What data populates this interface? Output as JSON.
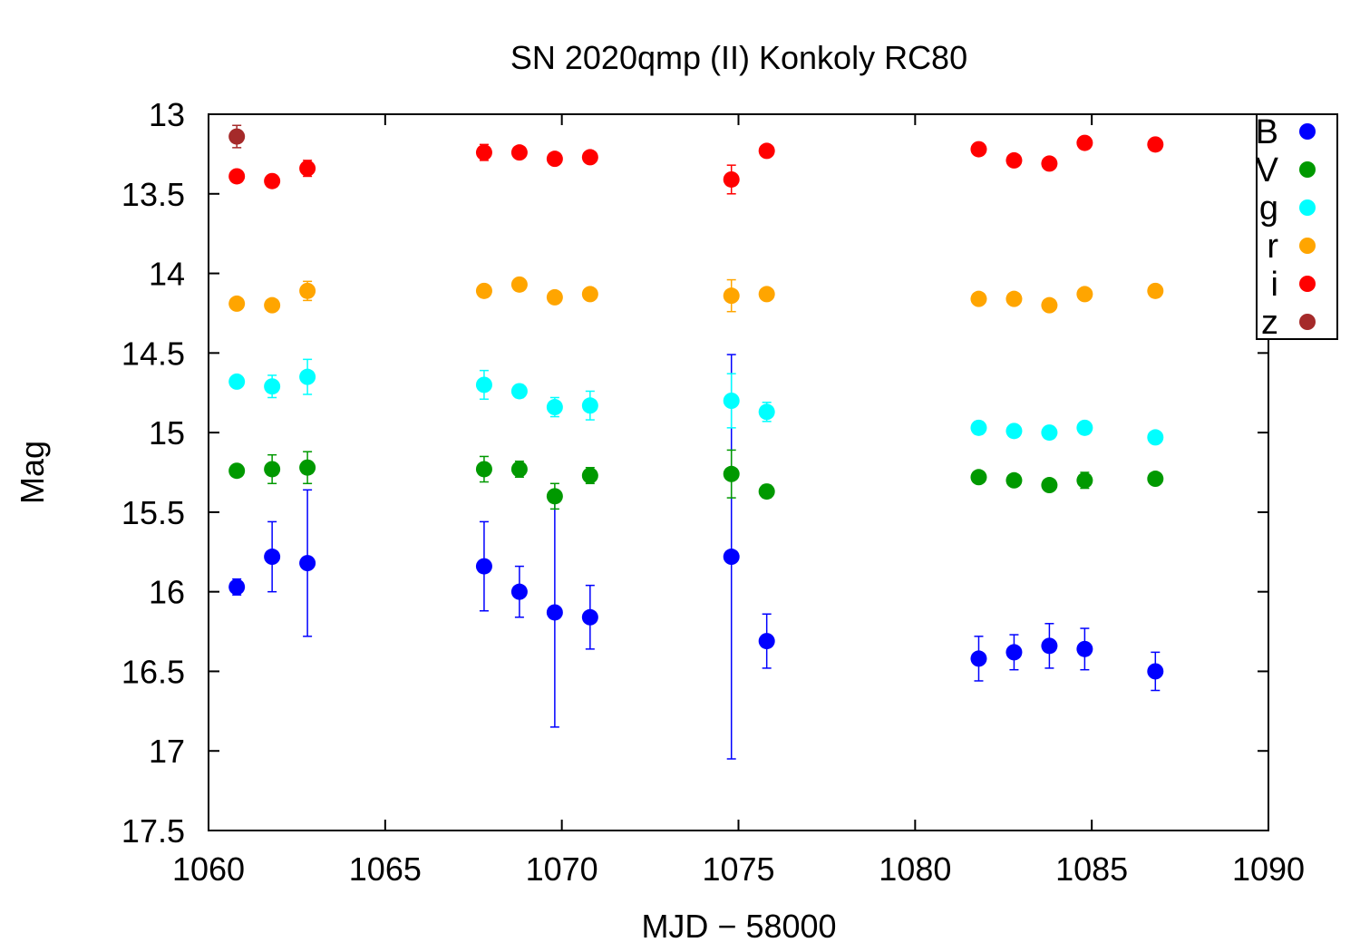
{
  "chart_data": {
    "type": "scatter",
    "title": "SN 2020qmp (II) Konkoly RC80",
    "xlabel": "MJD − 58000",
    "ylabel": "Mag",
    "xlim": [
      1060,
      1090
    ],
    "ylim": [
      13,
      17.5
    ],
    "y_inverted": true,
    "x_ticks": [
      "1060",
      "1065",
      "1070",
      "1075",
      "1080",
      "1085",
      "1090"
    ],
    "y_ticks": [
      "13",
      "13.5",
      "14",
      "14.5",
      "15",
      "15.5",
      "16",
      "16.5",
      "17",
      "17.5"
    ],
    "legend_position": "top-right",
    "grid": false,
    "series": [
      {
        "name": "B",
        "color": "#0000ff",
        "points": [
          {
            "x": 1060.8,
            "y": 15.97,
            "err": 0.05
          },
          {
            "x": 1061.8,
            "y": 15.78,
            "err": 0.22
          },
          {
            "x": 1062.8,
            "y": 15.82,
            "err": 0.46
          },
          {
            "x": 1067.8,
            "y": 15.84,
            "err": 0.28
          },
          {
            "x": 1068.8,
            "y": 16.0,
            "err": 0.16
          },
          {
            "x": 1069.8,
            "y": 16.13,
            "err": 0.72
          },
          {
            "x": 1070.8,
            "y": 16.16,
            "err": 0.2
          },
          {
            "x": 1074.8,
            "y": 15.78,
            "err": 1.27
          },
          {
            "x": 1075.8,
            "y": 16.31,
            "err": 0.17
          },
          {
            "x": 1081.8,
            "y": 16.42,
            "err": 0.14
          },
          {
            "x": 1082.8,
            "y": 16.38,
            "err": 0.11
          },
          {
            "x": 1083.8,
            "y": 16.34,
            "err": 0.14
          },
          {
            "x": 1084.8,
            "y": 16.36,
            "err": 0.13
          },
          {
            "x": 1086.8,
            "y": 16.5,
            "err": 0.12
          }
        ]
      },
      {
        "name": "V",
        "color": "#009900",
        "points": [
          {
            "x": 1060.8,
            "y": 15.24,
            "err": 0.03
          },
          {
            "x": 1061.8,
            "y": 15.23,
            "err": 0.09
          },
          {
            "x": 1062.8,
            "y": 15.22,
            "err": 0.1
          },
          {
            "x": 1067.8,
            "y": 15.23,
            "err": 0.08
          },
          {
            "x": 1068.8,
            "y": 15.23,
            "err": 0.05
          },
          {
            "x": 1069.8,
            "y": 15.4,
            "err": 0.08
          },
          {
            "x": 1070.8,
            "y": 15.27,
            "err": 0.05
          },
          {
            "x": 1074.8,
            "y": 15.26,
            "err": 0.15
          },
          {
            "x": 1075.8,
            "y": 15.37,
            "err": 0.04
          },
          {
            "x": 1081.8,
            "y": 15.28,
            "err": 0.02
          },
          {
            "x": 1082.8,
            "y": 15.3,
            "err": 0.03
          },
          {
            "x": 1083.8,
            "y": 15.33,
            "err": 0.02
          },
          {
            "x": 1084.8,
            "y": 15.3,
            "err": 0.05
          },
          {
            "x": 1086.8,
            "y": 15.29,
            "err": 0.02
          }
        ]
      },
      {
        "name": "g",
        "color": "#00ffff",
        "points": [
          {
            "x": 1060.8,
            "y": 14.68,
            "err": 0.03
          },
          {
            "x": 1061.8,
            "y": 14.71,
            "err": 0.07
          },
          {
            "x": 1062.8,
            "y": 14.65,
            "err": 0.11
          },
          {
            "x": 1067.8,
            "y": 14.7,
            "err": 0.09
          },
          {
            "x": 1068.8,
            "y": 14.74,
            "err": 0.04
          },
          {
            "x": 1069.8,
            "y": 14.84,
            "err": 0.06
          },
          {
            "x": 1070.8,
            "y": 14.83,
            "err": 0.09
          },
          {
            "x": 1074.8,
            "y": 14.8,
            "err": 0.17
          },
          {
            "x": 1075.8,
            "y": 14.87,
            "err": 0.06
          },
          {
            "x": 1081.8,
            "y": 14.97,
            "err": 0.04
          },
          {
            "x": 1082.8,
            "y": 14.99,
            "err": 0.03
          },
          {
            "x": 1083.8,
            "y": 15.0,
            "err": 0.03
          },
          {
            "x": 1084.8,
            "y": 14.97,
            "err": 0.03
          },
          {
            "x": 1086.8,
            "y": 15.03,
            "err": 0.03
          }
        ]
      },
      {
        "name": "r",
        "color": "#ffa500",
        "points": [
          {
            "x": 1060.8,
            "y": 14.19,
            "err": 0.03
          },
          {
            "x": 1061.8,
            "y": 14.2,
            "err": 0.03
          },
          {
            "x": 1062.8,
            "y": 14.11,
            "err": 0.06
          },
          {
            "x": 1067.8,
            "y": 14.11,
            "err": 0.03
          },
          {
            "x": 1068.8,
            "y": 14.07,
            "err": 0.03
          },
          {
            "x": 1069.8,
            "y": 14.15,
            "err": 0.03
          },
          {
            "x": 1070.8,
            "y": 14.13,
            "err": 0.03
          },
          {
            "x": 1074.8,
            "y": 14.14,
            "err": 0.1
          },
          {
            "x": 1075.8,
            "y": 14.13,
            "err": 0.03
          },
          {
            "x": 1081.8,
            "y": 14.16,
            "err": 0.03
          },
          {
            "x": 1082.8,
            "y": 14.16,
            "err": 0.03
          },
          {
            "x": 1083.8,
            "y": 14.2,
            "err": 0.03
          },
          {
            "x": 1084.8,
            "y": 14.13,
            "err": 0.03
          },
          {
            "x": 1086.8,
            "y": 14.11,
            "err": 0.03
          }
        ]
      },
      {
        "name": "i",
        "color": "#ff0000",
        "points": [
          {
            "x": 1060.8,
            "y": 13.39,
            "err": 0.02
          },
          {
            "x": 1061.8,
            "y": 13.42,
            "err": 0.02
          },
          {
            "x": 1062.8,
            "y": 13.34,
            "err": 0.05
          },
          {
            "x": 1067.8,
            "y": 13.24,
            "err": 0.05
          },
          {
            "x": 1068.8,
            "y": 13.24,
            "err": 0.03
          },
          {
            "x": 1069.8,
            "y": 13.28,
            "err": 0.02
          },
          {
            "x": 1070.8,
            "y": 13.27,
            "err": 0.02
          },
          {
            "x": 1074.8,
            "y": 13.41,
            "err": 0.09
          },
          {
            "x": 1075.8,
            "y": 13.23,
            "err": 0.02
          },
          {
            "x": 1081.8,
            "y": 13.22,
            "err": 0.02
          },
          {
            "x": 1082.8,
            "y": 13.29,
            "err": 0.02
          },
          {
            "x": 1083.8,
            "y": 13.31,
            "err": 0.02
          },
          {
            "x": 1084.8,
            "y": 13.18,
            "err": 0.02
          },
          {
            "x": 1086.8,
            "y": 13.19,
            "err": 0.02
          }
        ]
      },
      {
        "name": "z",
        "color": "#a52a2a",
        "points": [
          {
            "x": 1060.8,
            "y": 13.14,
            "err": 0.07
          }
        ]
      }
    ]
  }
}
